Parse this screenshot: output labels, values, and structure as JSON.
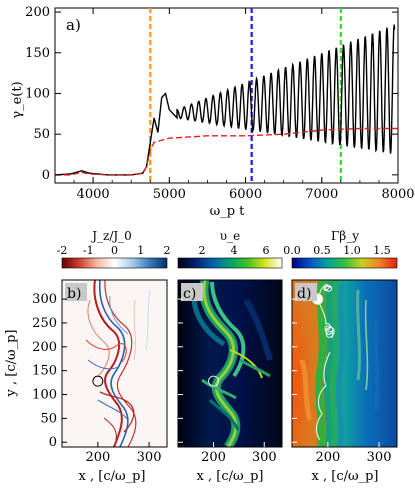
{
  "chart_data": [
    {
      "type": "line",
      "panel_label": "a)",
      "xlabel": "ω_p t",
      "ylabel": "γ_e(t)",
      "xlim": [
        3500,
        8000
      ],
      "ylim": [
        -10,
        205
      ],
      "xticks": [
        4000,
        5000,
        6000,
        7000,
        8000
      ],
      "yticks": [
        0,
        50,
        100,
        150,
        200
      ],
      "series": [
        {
          "style": "solid",
          "color": "#000000",
          "x": [
            3500,
            3700,
            3850,
            3950,
            4200,
            4500,
            4650,
            4700,
            4750,
            4800,
            4850,
            4900,
            4950,
            5000,
            5100
          ],
          "y": [
            0,
            1,
            5,
            2,
            0,
            0,
            2,
            10,
            40,
            70,
            52,
            95,
            100,
            80,
            70
          ]
        },
        {
          "style": "dashed",
          "color": "#e02020",
          "x": [
            3500,
            3700,
            3850,
            3950,
            4200,
            4500,
            4650,
            4700,
            4750,
            4800,
            5000,
            5500,
            6000,
            6500,
            6700,
            7000,
            7500,
            8000
          ],
          "y": [
            0,
            0,
            3,
            1,
            0,
            0,
            2,
            10,
            30,
            40,
            45,
            48,
            48,
            50,
            52,
            55,
            57,
            57
          ]
        }
      ],
      "oscillation": {
        "x_start": 5100,
        "x_end": 7960,
        "period": 95,
        "envelope_low": [
          70,
          25
        ],
        "envelope_high": [
          80,
          185
        ]
      },
      "vlines": [
        {
          "x": 4750,
          "color": "#ff9900"
        },
        {
          "x": 6080,
          "color": "#1a1aff"
        },
        {
          "x": 7250,
          "color": "#33dd33"
        }
      ]
    },
    {
      "type": "heatmap",
      "panel_label": "b)",
      "colorbar_label": "J_z/J_0",
      "colorbar_ticks": [
        "-2",
        "-1",
        "0",
        "1",
        "2"
      ],
      "colorscale": [
        "#6b0000",
        "#d04030",
        "#f4b8a0",
        "#ffffff",
        "#a8cce8",
        "#3a7cc0",
        "#0b2c6e"
      ],
      "xlabel": "x , [c/ω_p]",
      "ylabel": "y , [c/ω_p]",
      "xticks": [
        "200",
        "300"
      ],
      "yticks": [
        "0",
        "50",
        "100",
        "150",
        "200",
        "250",
        "300"
      ],
      "marker": {
        "x": 200,
        "y": 128
      }
    },
    {
      "type": "heatmap",
      "panel_label": "c)",
      "colorbar_label": "υ_e",
      "colorbar_ticks": [
        "2",
        "4",
        "6"
      ],
      "colorscale": [
        "#000014",
        "#001e6e",
        "#0060b0",
        "#00a070",
        "#40c020",
        "#d8e020",
        "#ffffff"
      ],
      "xlabel": "x , [c/ω_p]",
      "xticks": [
        "200",
        "300"
      ],
      "marker": {
        "x": 200,
        "y": 128
      }
    },
    {
      "type": "heatmap",
      "panel_label": "d)",
      "colorbar_label": "Γβ_y",
      "colorbar_ticks": [
        "0.0",
        "0.5",
        "1.0",
        "1.5"
      ],
      "colorscale": [
        "#000078",
        "#0050c8",
        "#00a0a0",
        "#30c040",
        "#c8d020",
        "#f08020",
        "#e02010"
      ],
      "xlabel": "x , [c/ω_p]",
      "xticks": [
        "200",
        "300"
      ],
      "marker": {
        "x": 180,
        "y": 300
      }
    }
  ]
}
